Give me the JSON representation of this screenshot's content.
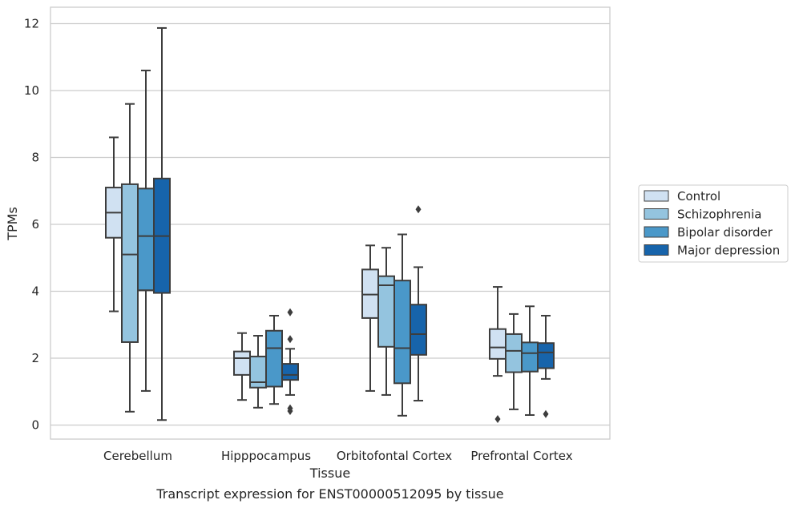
{
  "caption": "Transcript expression for ENST00000512095 by tissue",
  "chart_data": {
    "type": "box",
    "xlabel": "Tissue",
    "ylabel": "TPMs",
    "ylim": [
      -0.4,
      12.5
    ],
    "yticks": [
      0,
      2,
      4,
      6,
      8,
      10,
      12
    ],
    "grid": "horizontal",
    "legend_position": "right",
    "categories": [
      "Cerebellum",
      "Hipppocampus",
      "Orbitofontal Cortex",
      "Prefrontal Cortex"
    ],
    "series": [
      {
        "name": "Control",
        "color": "#d0e1f2",
        "boxes": [
          {
            "whislo": 3.4,
            "q1": 5.6,
            "med": 6.35,
            "q3": 7.1,
            "whishi": 8.6,
            "fliers": []
          },
          {
            "whislo": 0.75,
            "q1": 1.5,
            "med": 2.0,
            "q3": 2.2,
            "whishi": 2.75,
            "fliers": []
          },
          {
            "whislo": 1.02,
            "q1": 3.2,
            "med": 3.9,
            "q3": 4.65,
            "whishi": 5.37,
            "fliers": []
          },
          {
            "whislo": 1.47,
            "q1": 1.98,
            "med": 2.32,
            "q3": 2.87,
            "whishi": 4.13,
            "fliers": [
              0.18
            ]
          }
        ]
      },
      {
        "name": "Schizophrenia",
        "color": "#94c4df",
        "boxes": [
          {
            "whislo": 0.4,
            "q1": 2.48,
            "med": 5.1,
            "q3": 7.2,
            "whishi": 9.6,
            "fliers": []
          },
          {
            "whislo": 0.52,
            "q1": 1.12,
            "med": 1.28,
            "q3": 2.05,
            "whishi": 2.67,
            "fliers": []
          },
          {
            "whislo": 0.9,
            "q1": 2.34,
            "med": 4.18,
            "q3": 4.45,
            "whishi": 5.3,
            "fliers": []
          },
          {
            "whislo": 0.47,
            "q1": 1.58,
            "med": 2.22,
            "q3": 2.72,
            "whishi": 3.32,
            "fliers": []
          }
        ]
      },
      {
        "name": "Bipolar disorder",
        "color": "#4a98c9",
        "boxes": [
          {
            "whislo": 1.02,
            "q1": 4.03,
            "med": 5.65,
            "q3": 7.07,
            "whishi": 10.6,
            "fliers": []
          },
          {
            "whislo": 0.63,
            "q1": 1.15,
            "med": 2.3,
            "q3": 2.82,
            "whishi": 3.27,
            "fliers": []
          },
          {
            "whislo": 0.28,
            "q1": 1.25,
            "med": 2.3,
            "q3": 4.32,
            "whishi": 5.7,
            "fliers": []
          },
          {
            "whislo": 0.3,
            "q1": 1.6,
            "med": 2.15,
            "q3": 2.47,
            "whishi": 3.55,
            "fliers": []
          }
        ]
      },
      {
        "name": "Major depression",
        "color": "#1764ab",
        "boxes": [
          {
            "whislo": 0.15,
            "q1": 3.95,
            "med": 5.65,
            "q3": 7.37,
            "whishi": 11.87,
            "fliers": []
          },
          {
            "whislo": 0.9,
            "q1": 1.35,
            "med": 1.5,
            "q3": 1.83,
            "whishi": 2.28,
            "fliers": [
              3.37,
              2.57,
              0.5,
              0.42
            ]
          },
          {
            "whislo": 0.73,
            "q1": 2.1,
            "med": 2.72,
            "q3": 3.6,
            "whishi": 4.72,
            "fliers": [
              6.45
            ]
          },
          {
            "whislo": 1.38,
            "q1": 1.7,
            "med": 2.17,
            "q3": 2.45,
            "whishi": 3.27,
            "fliers": [
              0.33
            ]
          }
        ]
      }
    ]
  }
}
